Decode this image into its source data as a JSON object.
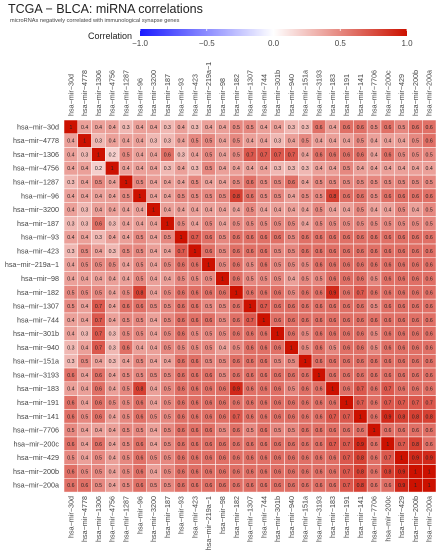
{
  "title": "TCGA − BLCA: miRNA correlations",
  "subtitle": "microRNAs negatively correlated with immunological synapse genes",
  "colorbar": {
    "label": "Correlation",
    "ticks": [
      "−1.0",
      "−0.5",
      "0.0",
      "0.5",
      "1.0"
    ],
    "tick_values": [
      -1,
      -0.5,
      0,
      0.5,
      1
    ],
    "colors": {
      "low": "#1a1aff",
      "mid": "#ffffff",
      "high": "#cc1100"
    }
  },
  "chart_data": {
    "type": "heatmap",
    "title": "TCGA − BLCA: miRNA correlations",
    "subtitle": "microRNAs negatively correlated with immunological synapse genes",
    "legend_title": "Correlation",
    "value_range": [
      -1,
      1
    ],
    "labels": [
      "hsa−mir−30d",
      "hsa−mir−4778",
      "hsa−mir−1306",
      "hsa−mir−4756",
      "hsa−mir−1287",
      "hsa−mir−96",
      "hsa−mir−3200",
      "hsa−mir−187",
      "hsa−mir−93",
      "hsa−mir−423",
      "hsa−mir−219a−1",
      "hsa−mir−98",
      "hsa−mir−182",
      "hsa−mir−1307",
      "hsa−mir−744",
      "hsa−mir−301b",
      "hsa−mir−940",
      "hsa−mir−151a",
      "hsa−mir−3193",
      "hsa−mir−183",
      "hsa−mir−191",
      "hsa−mir−141",
      "hsa−mir−7706",
      "hsa−mir−200c",
      "hsa−mir−429",
      "hsa−mir−200b",
      "hsa−mir−200a"
    ],
    "matrix": [
      [
        1,
        0.4,
        0.4,
        0.4,
        0.3,
        0.4,
        0.4,
        0.3,
        0.4,
        0.3,
        0.4,
        0.4,
        0.5,
        0.5,
        0.4,
        0.4,
        0.3,
        0.3,
        0.6,
        0.4,
        0.6,
        0.6,
        0.5,
        0.6,
        0.5,
        0.6,
        0.6
      ],
      [
        0.4,
        1,
        0.3,
        0.4,
        0.4,
        0.4,
        0.3,
        0.3,
        0.4,
        0.5,
        0.5,
        0.4,
        0.5,
        0.4,
        0.4,
        0.3,
        0.4,
        0.5,
        0.4,
        0.4,
        0.4,
        0.5,
        0.4,
        0.4,
        0.4,
        0.5,
        0.6
      ],
      [
        0.4,
        0.3,
        1,
        0.2,
        0.5,
        0.4,
        0.4,
        0.6,
        0.3,
        0.4,
        0.5,
        0.4,
        0.5,
        0.7,
        0.7,
        0.7,
        0.7,
        0.4,
        0.6,
        0.6,
        0.6,
        0.6,
        0.4,
        0.6,
        0.5,
        0.5,
        0.5
      ],
      [
        0.4,
        0.4,
        0.2,
        1,
        0.4,
        0.4,
        0.4,
        0.3,
        0.4,
        0.3,
        0.5,
        0.4,
        0.4,
        0.4,
        0.4,
        0.3,
        0.3,
        0.3,
        0.4,
        0.4,
        0.5,
        0.4,
        0.4,
        0.4,
        0.4,
        0.4,
        0.4
      ],
      [
        0.3,
        0.4,
        0.5,
        0.4,
        1,
        0.5,
        0.4,
        0.4,
        0.4,
        0.5,
        0.4,
        0.4,
        0.5,
        0.6,
        0.5,
        0.5,
        0.6,
        0.4,
        0.5,
        0.5,
        0.5,
        0.5,
        0.5,
        0.5,
        0.5,
        0.5,
        0.5
      ],
      [
        0.4,
        0.4,
        0.4,
        0.4,
        0.5,
        1,
        0.4,
        0.4,
        0.5,
        0.5,
        0.5,
        0.5,
        0.8,
        0.6,
        0.5,
        0.5,
        0.4,
        0.5,
        0.5,
        0.8,
        0.6,
        0.6,
        0.5,
        0.6,
        0.6,
        0.6,
        0.6
      ],
      [
        0.4,
        0.3,
        0.4,
        0.4,
        0.4,
        0.4,
        1,
        0.4,
        0.4,
        0.4,
        0.4,
        0.4,
        0.4,
        0.5,
        0.4,
        0.4,
        0.4,
        0.4,
        0.5,
        0.4,
        0.4,
        0.5,
        0.4,
        0.4,
        0.5,
        0.4,
        0.5
      ],
      [
        0.3,
        0.3,
        0.6,
        0.3,
        0.4,
        0.4,
        0.4,
        1,
        0.5,
        0.4,
        0.5,
        0.4,
        0.5,
        0.5,
        0.5,
        0.5,
        0.5,
        0.4,
        0.5,
        0.5,
        0.5,
        0.5,
        0.5,
        0.5,
        0.5,
        0.5,
        0.5
      ],
      [
        0.4,
        0.4,
        0.3,
        0.4,
        0.4,
        0.5,
        0.4,
        0.5,
        1,
        0.7,
        0.6,
        0.5,
        0.6,
        0.6,
        0.6,
        0.6,
        0.5,
        0.6,
        0.6,
        0.6,
        0.6,
        0.6,
        0.6,
        0.6,
        0.6,
        0.6,
        0.6
      ],
      [
        0.3,
        0.5,
        0.4,
        0.3,
        0.5,
        0.5,
        0.4,
        0.4,
        0.7,
        1,
        0.6,
        0.5,
        0.6,
        0.6,
        0.6,
        0.5,
        0.5,
        0.6,
        0.6,
        0.6,
        0.6,
        0.6,
        0.6,
        0.6,
        0.6,
        0.6,
        0.6
      ],
      [
        0.4,
        0.5,
        0.5,
        0.5,
        0.4,
        0.5,
        0.4,
        0.5,
        0.6,
        0.6,
        1,
        0.5,
        0.6,
        0.5,
        0.6,
        0.5,
        0.5,
        0.5,
        0.6,
        0.6,
        0.6,
        0.6,
        0.6,
        0.6,
        0.6,
        0.6,
        0.6
      ],
      [
        0.4,
        0.4,
        0.4,
        0.4,
        0.4,
        0.5,
        0.4,
        0.4,
        0.5,
        0.5,
        0.5,
        1,
        0.6,
        0.5,
        0.5,
        0.5,
        0.4,
        0.5,
        0.5,
        0.6,
        0.6,
        0.6,
        0.5,
        0.6,
        0.6,
        0.6,
        0.6
      ],
      [
        0.5,
        0.5,
        0.5,
        0.4,
        0.5,
        0.8,
        0.4,
        0.5,
        0.6,
        0.6,
        0.6,
        0.6,
        1,
        0.6,
        0.6,
        0.6,
        0.5,
        0.6,
        0.6,
        0.9,
        0.6,
        0.7,
        0.6,
        0.6,
        0.6,
        0.6,
        0.6
      ],
      [
        0.5,
        0.4,
        0.7,
        0.4,
        0.6,
        0.6,
        0.5,
        0.5,
        0.6,
        0.6,
        0.5,
        0.5,
        0.6,
        1,
        0.7,
        0.6,
        0.6,
        0.6,
        0.6,
        0.6,
        0.6,
        0.6,
        0.5,
        0.6,
        0.6,
        0.6,
        0.6
      ],
      [
        0.4,
        0.4,
        0.7,
        0.4,
        0.5,
        0.5,
        0.4,
        0.5,
        0.6,
        0.6,
        0.6,
        0.5,
        0.6,
        0.7,
        1,
        0.6,
        0.6,
        0.6,
        0.6,
        0.6,
        0.6,
        0.6,
        0.6,
        0.6,
        0.6,
        0.6,
        0.6
      ],
      [
        0.4,
        0.3,
        0.7,
        0.3,
        0.5,
        0.5,
        0.4,
        0.5,
        0.6,
        0.5,
        0.5,
        0.5,
        0.6,
        0.6,
        0.6,
        1,
        0.6,
        0.5,
        0.6,
        0.6,
        0.6,
        0.6,
        0.5,
        0.6,
        0.6,
        0.6,
        0.6
      ],
      [
        0.3,
        0.4,
        0.7,
        0.3,
        0.6,
        0.4,
        0.4,
        0.5,
        0.5,
        0.5,
        0.5,
        0.4,
        0.5,
        0.6,
        0.6,
        0.6,
        1,
        0.5,
        0.6,
        0.5,
        0.6,
        0.6,
        0.5,
        0.6,
        0.6,
        0.6,
        0.6
      ],
      [
        0.3,
        0.5,
        0.4,
        0.3,
        0.4,
        0.5,
        0.4,
        0.4,
        0.6,
        0.6,
        0.5,
        0.5,
        0.6,
        0.6,
        0.6,
        0.5,
        0.5,
        1,
        0.6,
        0.6,
        0.6,
        0.6,
        0.6,
        0.6,
        0.6,
        0.6,
        0.6
      ],
      [
        0.6,
        0.4,
        0.6,
        0.4,
        0.5,
        0.5,
        0.5,
        0.5,
        0.6,
        0.6,
        0.6,
        0.5,
        0.6,
        0.6,
        0.6,
        0.6,
        0.6,
        0.6,
        1,
        0.6,
        0.6,
        0.6,
        0.6,
        0.6,
        0.6,
        0.6,
        0.6
      ],
      [
        0.4,
        0.4,
        0.6,
        0.4,
        0.5,
        0.8,
        0.4,
        0.5,
        0.6,
        0.6,
        0.6,
        0.6,
        0.9,
        0.6,
        0.6,
        0.6,
        0.5,
        0.6,
        0.6,
        1,
        0.6,
        0.7,
        0.6,
        0.7,
        0.6,
        0.6,
        0.6
      ],
      [
        0.6,
        0.4,
        0.6,
        0.5,
        0.5,
        0.6,
        0.4,
        0.5,
        0.6,
        0.6,
        0.6,
        0.6,
        0.6,
        0.6,
        0.6,
        0.6,
        0.6,
        0.6,
        0.6,
        0.6,
        1,
        0.7,
        0.6,
        0.7,
        0.7,
        0.7,
        0.7
      ],
      [
        0.6,
        0.5,
        0.6,
        0.4,
        0.5,
        0.6,
        0.5,
        0.5,
        0.6,
        0.6,
        0.6,
        0.6,
        0.7,
        0.6,
        0.6,
        0.6,
        0.6,
        0.6,
        0.6,
        0.7,
        0.7,
        1,
        0.6,
        0.9,
        0.8,
        0.8,
        0.8
      ],
      [
        0.5,
        0.4,
        0.4,
        0.4,
        0.5,
        0.5,
        0.4,
        0.5,
        0.6,
        0.6,
        0.6,
        0.5,
        0.6,
        0.5,
        0.6,
        0.5,
        0.5,
        0.6,
        0.6,
        0.6,
        0.6,
        0.6,
        1,
        0.6,
        0.6,
        0.6,
        0.6
      ],
      [
        0.6,
        0.4,
        0.6,
        0.4,
        0.5,
        0.6,
        0.4,
        0.5,
        0.6,
        0.6,
        0.6,
        0.6,
        0.6,
        0.6,
        0.6,
        0.6,
        0.6,
        0.6,
        0.6,
        0.7,
        0.7,
        0.9,
        0.6,
        1,
        0.7,
        0.8,
        0.6
      ],
      [
        0.5,
        0.4,
        0.5,
        0.4,
        0.5,
        0.6,
        0.5,
        0.5,
        0.6,
        0.6,
        0.6,
        0.6,
        0.6,
        0.6,
        0.6,
        0.6,
        0.6,
        0.6,
        0.6,
        0.6,
        0.7,
        0.8,
        0.6,
        0.7,
        1,
        0.9,
        0.9
      ],
      [
        0.6,
        0.5,
        0.5,
        0.4,
        0.5,
        0.6,
        0.4,
        0.5,
        0.6,
        0.6,
        0.6,
        0.6,
        0.6,
        0.6,
        0.6,
        0.6,
        0.6,
        0.6,
        0.6,
        0.6,
        0.7,
        0.8,
        0.6,
        0.8,
        0.9,
        1,
        1
      ],
      [
        0.6,
        0.6,
        0.5,
        0.4,
        0.5,
        0.6,
        0.5,
        0.5,
        0.6,
        0.6,
        0.6,
        0.6,
        0.6,
        0.6,
        0.6,
        0.6,
        0.6,
        0.6,
        0.6,
        0.6,
        0.7,
        0.8,
        0.6,
        0.6,
        0.9,
        1,
        1
      ]
    ]
  }
}
